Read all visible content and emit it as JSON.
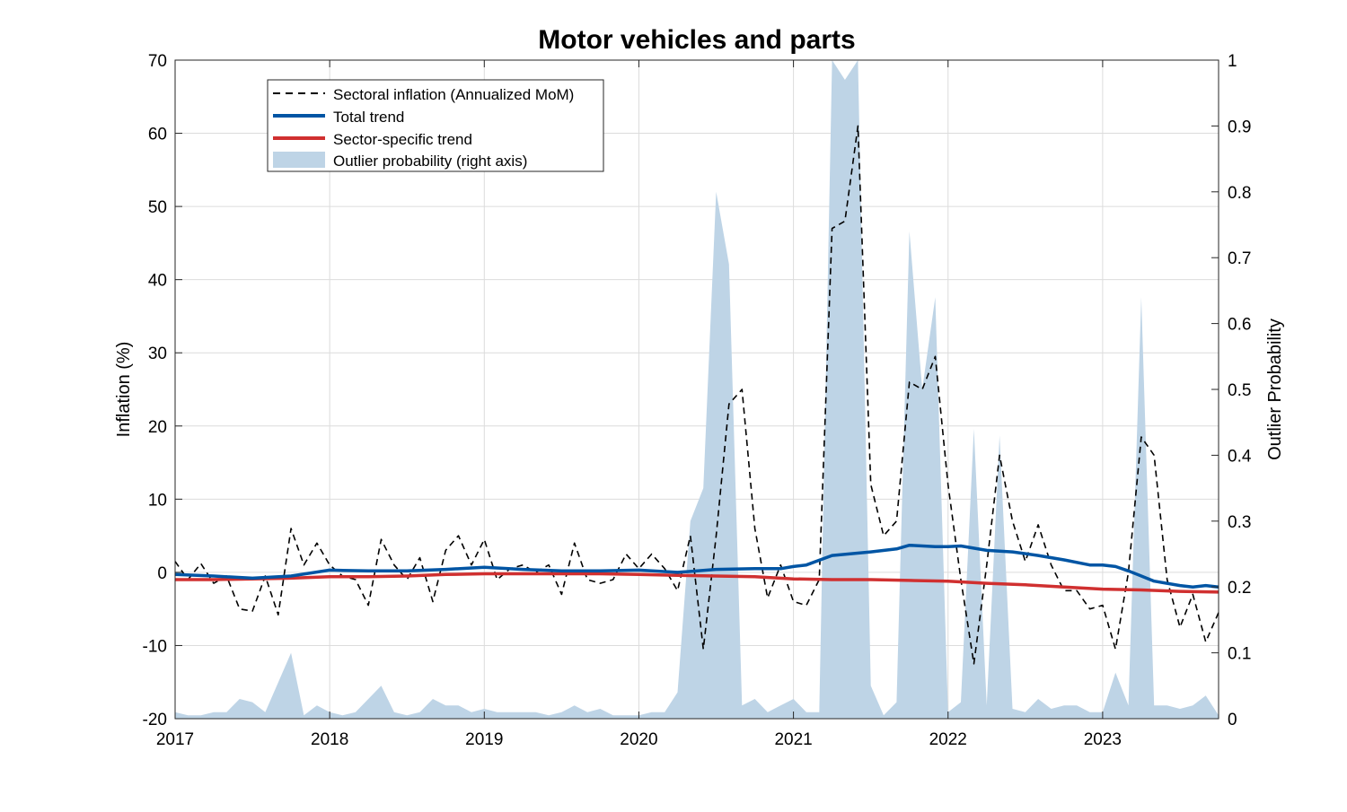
{
  "chart_data": {
    "type": "line",
    "title": "Motor vehicles and parts",
    "ylabel": "Inflation (%)",
    "y2label": "Outlier Probability",
    "xlim": [
      2017.0,
      2023.75
    ],
    "ylim": [
      -20,
      70
    ],
    "y2lim": [
      0,
      1
    ],
    "x_ticks": [
      2017,
      2018,
      2019,
      2020,
      2021,
      2022,
      2023
    ],
    "x_tick_labels": [
      "2017",
      "2018",
      "2019",
      "2020",
      "2021",
      "2022",
      "2023"
    ],
    "y_ticks": [
      -20,
      -10,
      0,
      10,
      20,
      30,
      40,
      50,
      60,
      70
    ],
    "y_tick_labels": [
      "-20",
      "-10",
      "0",
      "10",
      "20",
      "30",
      "40",
      "50",
      "60",
      "70"
    ],
    "y2_ticks": [
      0,
      0.1,
      0.2,
      0.3,
      0.4,
      0.5,
      0.6,
      0.7,
      0.8,
      0.9,
      1
    ],
    "y2_tick_labels": [
      "0",
      "0.1",
      "0.2",
      "0.3",
      "0.4",
      "0.5",
      "0.6",
      "0.7",
      "0.8",
      "0.9",
      "1"
    ],
    "grid": true,
    "legend_position": "top-left",
    "colors": {
      "sectoral": "#000000",
      "total_trend": "#0055a4",
      "sector_trend": "#d03030",
      "outlier_fill": "#bed4e6"
    },
    "series": [
      {
        "name": "Sectoral inflation (Annualized MoM)",
        "axis": "left",
        "style": "dashed",
        "x": [
          2017.0,
          2017.083,
          2017.167,
          2017.25,
          2017.333,
          2017.417,
          2017.5,
          2017.583,
          2017.667,
          2017.75,
          2017.833,
          2017.917,
          2018.0,
          2018.083,
          2018.167,
          2018.25,
          2018.333,
          2018.417,
          2018.5,
          2018.583,
          2018.667,
          2018.75,
          2018.833,
          2018.917,
          2019.0,
          2019.083,
          2019.167,
          2019.25,
          2019.333,
          2019.417,
          2019.5,
          2019.583,
          2019.667,
          2019.75,
          2019.833,
          2019.917,
          2020.0,
          2020.083,
          2020.167,
          2020.25,
          2020.333,
          2020.417,
          2020.5,
          2020.583,
          2020.667,
          2020.75,
          2020.833,
          2020.917,
          2021.0,
          2021.083,
          2021.167,
          2021.25,
          2021.333,
          2021.417,
          2021.5,
          2021.583,
          2021.667,
          2021.75,
          2021.833,
          2021.917,
          2022.0,
          2022.083,
          2022.167,
          2022.25,
          2022.333,
          2022.417,
          2022.5,
          2022.583,
          2022.667,
          2022.75,
          2022.833,
          2022.917,
          2023.0,
          2023.083,
          2023.167,
          2023.25,
          2023.333,
          2023.417,
          2023.5,
          2023.583,
          2023.667,
          2023.75
        ],
        "values": [
          1.5,
          -1.0,
          1.2,
          -1.5,
          -0.5,
          -5.0,
          -5.3,
          -0.5,
          -5.8,
          6.0,
          1.0,
          4.0,
          1.0,
          -0.5,
          -1.0,
          -4.5,
          4.5,
          1.0,
          -1.0,
          2.0,
          -4.0,
          3.0,
          5.0,
          1.0,
          4.5,
          -1.0,
          0.5,
          1.0,
          0.0,
          1.0,
          -3.0,
          4.0,
          -1.0,
          -1.5,
          -1.0,
          2.5,
          0.5,
          2.5,
          0.5,
          -2.5,
          5.0,
          -10.5,
          5.0,
          23.0,
          25.0,
          6.0,
          -3.5,
          1.0,
          -4.0,
          -4.5,
          -1.0,
          47.0,
          48.0,
          61.0,
          12.0,
          5.0,
          7.0,
          26.0,
          25.0,
          29.5,
          12.0,
          -1.0,
          -12.5,
          1.0,
          16.0,
          7.0,
          1.5,
          6.5,
          1.0,
          -2.5,
          -2.5,
          -5.0,
          -4.5,
          -10.5,
          0.0,
          18.5,
          16.0,
          -1.0,
          -7.5,
          -3.0,
          -9.5,
          -5.5
        ]
      },
      {
        "name": "Total trend",
        "axis": "left",
        "style": "solid",
        "x": [
          2017.0,
          2017.25,
          2017.5,
          2017.75,
          2018.0,
          2018.25,
          2018.5,
          2018.75,
          2019.0,
          2019.25,
          2019.5,
          2019.75,
          2020.0,
          2020.25,
          2020.5,
          2020.75,
          2020.917,
          2021.0,
          2021.083,
          2021.25,
          2021.5,
          2021.667,
          2021.75,
          2021.917,
          2022.0,
          2022.083,
          2022.25,
          2022.417,
          2022.583,
          2022.75,
          2022.917,
          2023.0,
          2023.083,
          2023.167,
          2023.333,
          2023.5,
          2023.583,
          2023.667,
          2023.75
        ],
        "values": [
          -0.3,
          -0.5,
          -0.8,
          -0.5,
          0.3,
          0.2,
          0.2,
          0.4,
          0.7,
          0.4,
          0.2,
          0.2,
          0.3,
          0.0,
          0.4,
          0.5,
          0.5,
          0.8,
          1.0,
          2.3,
          2.8,
          3.2,
          3.7,
          3.5,
          3.5,
          3.6,
          3.0,
          2.8,
          2.3,
          1.7,
          1.0,
          1.0,
          0.8,
          0.2,
          -1.2,
          -1.8,
          -2.0,
          -1.8,
          -2.0
        ]
      },
      {
        "name": "Sector-specific trend",
        "axis": "left",
        "style": "solid",
        "x": [
          2017.0,
          2017.25,
          2017.5,
          2017.75,
          2018.0,
          2018.25,
          2018.5,
          2018.75,
          2019.0,
          2019.25,
          2019.5,
          2019.75,
          2020.0,
          2020.25,
          2020.5,
          2020.75,
          2021.0,
          2021.25,
          2021.5,
          2021.75,
          2022.0,
          2022.25,
          2022.5,
          2022.75,
          2023.0,
          2023.25,
          2023.5,
          2023.75
        ],
        "values": [
          -1.0,
          -1.0,
          -0.9,
          -0.8,
          -0.6,
          -0.6,
          -0.5,
          -0.3,
          -0.2,
          -0.2,
          -0.2,
          -0.2,
          -0.3,
          -0.4,
          -0.5,
          -0.6,
          -0.9,
          -1.0,
          -1.0,
          -1.1,
          -1.2,
          -1.5,
          -1.7,
          -2.0,
          -2.3,
          -2.4,
          -2.6,
          -2.7
        ]
      },
      {
        "name": "Outlier probability (right axis)",
        "axis": "right",
        "style": "area",
        "x": [
          2017.0,
          2017.083,
          2017.167,
          2017.25,
          2017.333,
          2017.417,
          2017.5,
          2017.583,
          2017.667,
          2017.75,
          2017.833,
          2017.917,
          2018.0,
          2018.083,
          2018.167,
          2018.25,
          2018.333,
          2018.417,
          2018.5,
          2018.583,
          2018.667,
          2018.75,
          2018.833,
          2018.917,
          2019.0,
          2019.083,
          2019.167,
          2019.25,
          2019.333,
          2019.417,
          2019.5,
          2019.583,
          2019.667,
          2019.75,
          2019.833,
          2019.917,
          2020.0,
          2020.083,
          2020.167,
          2020.25,
          2020.333,
          2020.417,
          2020.5,
          2020.583,
          2020.667,
          2020.75,
          2020.833,
          2020.917,
          2021.0,
          2021.083,
          2021.167,
          2021.25,
          2021.333,
          2021.417,
          2021.5,
          2021.583,
          2021.667,
          2021.75,
          2021.833,
          2021.917,
          2022.0,
          2022.083,
          2022.167,
          2022.25,
          2022.333,
          2022.417,
          2022.5,
          2022.583,
          2022.667,
          2022.75,
          2022.833,
          2022.917,
          2023.0,
          2023.083,
          2023.167,
          2023.25,
          2023.333,
          2023.417,
          2023.5,
          2023.583,
          2023.667,
          2023.75
        ],
        "values": [
          0.01,
          0.005,
          0.005,
          0.01,
          0.01,
          0.03,
          0.025,
          0.01,
          0.055,
          0.1,
          0.005,
          0.02,
          0.01,
          0.005,
          0.01,
          0.03,
          0.05,
          0.01,
          0.005,
          0.01,
          0.03,
          0.02,
          0.02,
          0.01,
          0.015,
          0.01,
          0.01,
          0.01,
          0.01,
          0.005,
          0.01,
          0.02,
          0.01,
          0.015,
          0.005,
          0.005,
          0.005,
          0.01,
          0.01,
          0.04,
          0.3,
          0.35,
          0.8,
          0.69,
          0.02,
          0.03,
          0.01,
          0.02,
          0.03,
          0.01,
          0.01,
          1.0,
          0.97,
          1.0,
          0.05,
          0.005,
          0.025,
          0.74,
          0.5,
          0.64,
          0.01,
          0.025,
          0.44,
          0.02,
          0.43,
          0.015,
          0.01,
          0.03,
          0.015,
          0.02,
          0.02,
          0.01,
          0.01,
          0.07,
          0.02,
          0.64,
          0.02,
          0.02,
          0.015,
          0.02,
          0.035,
          0.005
        ]
      }
    ]
  }
}
